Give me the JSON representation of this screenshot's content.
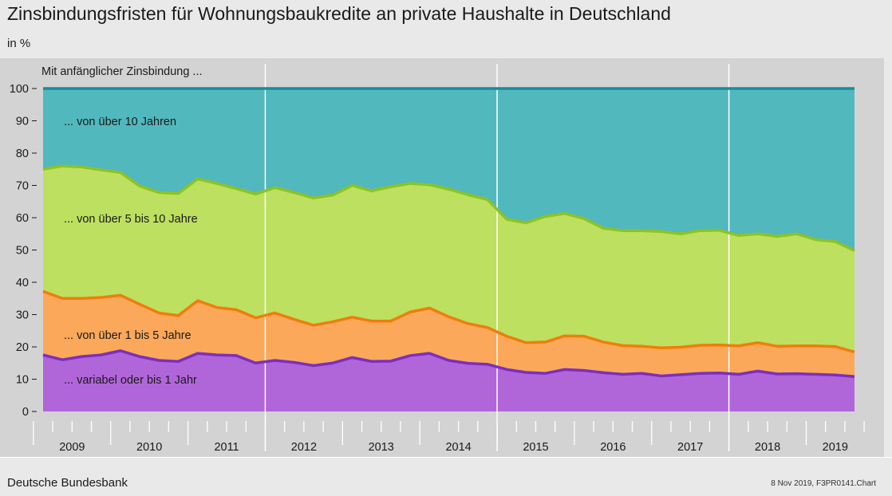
{
  "header": {
    "title": "Zinsbindungsfristen für Wohnungsbaukredite an private Haushalte in Deutschland",
    "unit": "in %"
  },
  "footer": {
    "source": "Deutsche Bundesbank",
    "stamp": "8 Nov 2019, F3PR0141.Chart"
  },
  "chart_data": {
    "type": "area",
    "stacked": true,
    "annotation": "Mit anfänglicher Zinsbindung ...",
    "x_unit": "quarter",
    "x": [
      "2009Q1",
      "2009Q2",
      "2009Q3",
      "2009Q4",
      "2010Q1",
      "2010Q2",
      "2010Q3",
      "2010Q4",
      "2011Q1",
      "2011Q2",
      "2011Q3",
      "2011Q4",
      "2012Q1",
      "2012Q2",
      "2012Q3",
      "2012Q4",
      "2013Q1",
      "2013Q2",
      "2013Q3",
      "2013Q4",
      "2014Q1",
      "2014Q2",
      "2014Q3",
      "2014Q4",
      "2015Q1",
      "2015Q2",
      "2015Q3",
      "2015Q4",
      "2016Q1",
      "2016Q2",
      "2016Q3",
      "2016Q4",
      "2017Q1",
      "2017Q2",
      "2017Q3",
      "2017Q4",
      "2018Q1",
      "2018Q2",
      "2018Q3",
      "2018Q4",
      "2019Q1",
      "2019Q2",
      "2019Q3"
    ],
    "x_tick_labels": [
      "2009",
      "2010",
      "2011",
      "2012",
      "2013",
      "2014",
      "2015",
      "2016",
      "2017",
      "2018",
      "2019"
    ],
    "ylim": [
      0,
      100
    ],
    "yticks": [
      0,
      10,
      20,
      30,
      40,
      50,
      60,
      70,
      80,
      90,
      100
    ],
    "grid": true,
    "series": [
      {
        "name": "... variabel oder bis 1 Jahr",
        "color": "#b066d9",
        "line_color": "#7b2fbf",
        "cumulative": [
          17.5,
          16,
          17,
          17.5,
          18.8,
          17,
          15.8,
          15.5,
          18,
          17.5,
          17.3,
          15,
          15.8,
          15.2,
          14.2,
          15,
          16.7,
          15.5,
          15.6,
          17.3,
          18,
          15.8,
          14.9,
          14.6,
          13,
          12.1,
          11.8,
          13,
          12.7,
          12,
          11.5,
          11.8,
          11,
          11.4,
          11.8,
          11.9,
          11.5,
          12.5,
          11.6,
          11.7,
          11.5,
          11.3,
          10.8
        ]
      },
      {
        "name": "... von über 1 bis 5 Jahre",
        "color": "#fba85a",
        "line_color": "#f07d0c",
        "cumulative": [
          37.2,
          35,
          35,
          35.3,
          36,
          33.2,
          30.5,
          29.7,
          34.3,
          32.2,
          31.5,
          29,
          30.5,
          28.5,
          26.7,
          27.8,
          29.2,
          28,
          28,
          30.8,
          32,
          29.3,
          27.2,
          26,
          23.3,
          21.3,
          21.5,
          23.4,
          23.3,
          21.5,
          20.4,
          20.2,
          19.7,
          19.9,
          20.5,
          20.6,
          20.3,
          21.3,
          20.2,
          20.3,
          20.3,
          20.1,
          18.4
        ]
      },
      {
        "name": "... von über 5 bis 10 Jahre",
        "color": "#bde060",
        "line_color": "#8fc31f",
        "cumulative": [
          75,
          76,
          75.7,
          74.8,
          74,
          69.8,
          67.8,
          67.5,
          72,
          70.6,
          69,
          67.3,
          69.3,
          67.8,
          66.1,
          67,
          70,
          68.3,
          69.6,
          70.6,
          70.2,
          68.8,
          67.1,
          65.6,
          59.5,
          58.4,
          60.4,
          61.3,
          59.7,
          56.7,
          56,
          56,
          55.7,
          55,
          56,
          56.1,
          54.5,
          55,
          54.2,
          55,
          53.2,
          52.6,
          49.8
        ]
      },
      {
        "name": "... von über 10 Jahren",
        "color": "#51b8be",
        "line_color": "#168f99",
        "cumulative": [
          100,
          100,
          100,
          100,
          100,
          100,
          100,
          100,
          100,
          100,
          100,
          100,
          100,
          100,
          100,
          100,
          100,
          100,
          100,
          100,
          100,
          100,
          100,
          100,
          100,
          100,
          100,
          100,
          100,
          100,
          100,
          100,
          100,
          100,
          100,
          100,
          100,
          100,
          100,
          100,
          100,
          100,
          100
        ]
      }
    ]
  }
}
